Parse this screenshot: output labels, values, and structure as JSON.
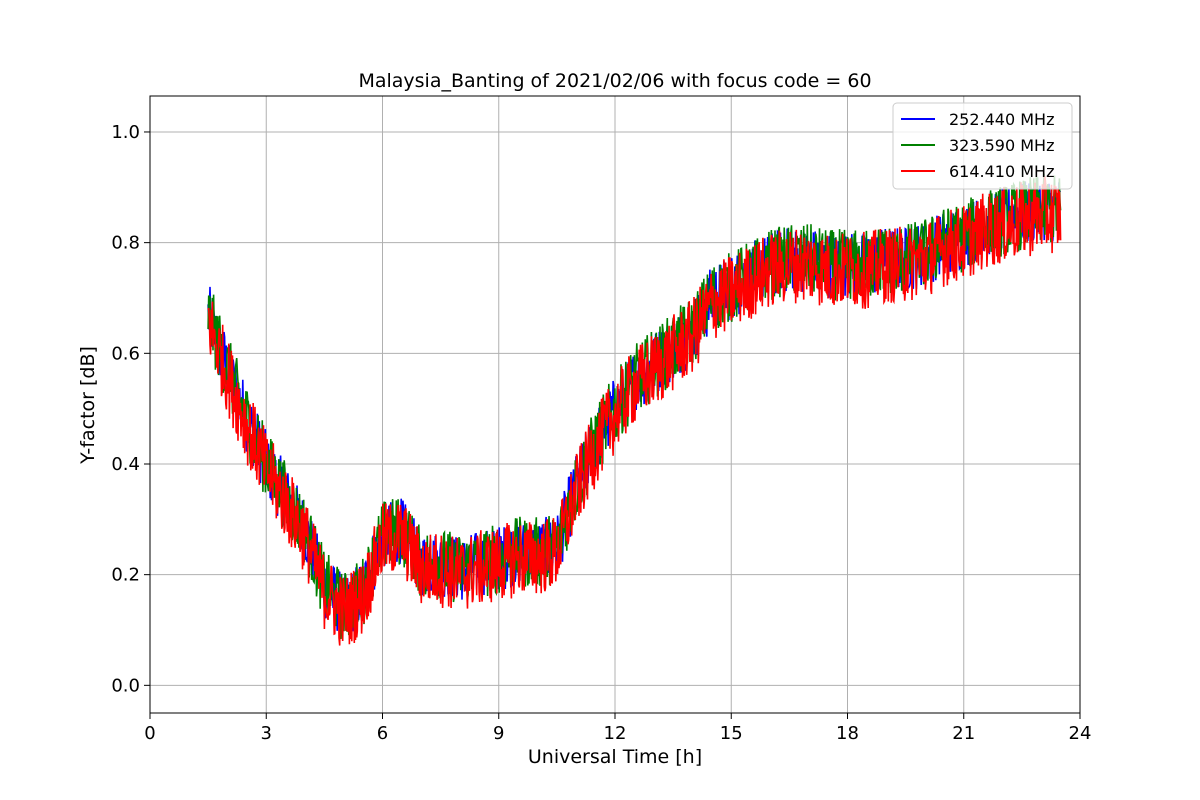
{
  "chart_data": {
    "type": "line",
    "title": "Malaysia_Banting of 2021/02/06 with focus code = 60",
    "xlabel": "Universal Time [h]",
    "ylabel": "Y-factor [dB]",
    "xlim": [
      0,
      24
    ],
    "ylim": [
      -0.05,
      1.065
    ],
    "x_ticks": [
      0,
      3,
      6,
      9,
      12,
      15,
      18,
      21,
      24
    ],
    "x_tick_labels": [
      "0",
      "3",
      "6",
      "9",
      "12",
      "15",
      "18",
      "21",
      "24"
    ],
    "y_ticks": [
      0.0,
      0.2,
      0.4,
      0.6,
      0.8,
      1.0
    ],
    "y_tick_labels": [
      "0.0",
      "0.2",
      "0.4",
      "0.6",
      "0.8",
      "1.0"
    ],
    "grid": true,
    "legend_position": "top-right",
    "series": [
      {
        "name": "252.440 MHz",
        "color": "#0000ff",
        "x": [
          1.5,
          2.0,
          2.5,
          3.0,
          3.5,
          4.0,
          4.5,
          5.0,
          5.5,
          6.0,
          6.5,
          7.0,
          7.5,
          8.0,
          8.5,
          9.0,
          9.5,
          10.0,
          10.5,
          11.0,
          11.5,
          12.0,
          12.5,
          13.0,
          13.5,
          14.0,
          14.5,
          15.0,
          15.5,
          16.0,
          16.5,
          17.0,
          17.5,
          18.0,
          18.5,
          19.0,
          19.5,
          20.0,
          20.5,
          21.0,
          21.5,
          22.0,
          22.5,
          23.0,
          23.5
        ],
        "y": [
          0.67,
          0.57,
          0.48,
          0.4,
          0.34,
          0.28,
          0.18,
          0.14,
          0.17,
          0.27,
          0.28,
          0.22,
          0.22,
          0.21,
          0.22,
          0.23,
          0.24,
          0.24,
          0.25,
          0.36,
          0.44,
          0.5,
          0.55,
          0.58,
          0.61,
          0.64,
          0.7,
          0.72,
          0.74,
          0.76,
          0.77,
          0.77,
          0.76,
          0.76,
          0.76,
          0.77,
          0.77,
          0.78,
          0.8,
          0.81,
          0.83,
          0.84,
          0.85,
          0.86,
          0.86
        ],
        "amplitude": 0.06
      },
      {
        "name": "323.590 MHz",
        "color": "#008000",
        "x": [
          1.5,
          2.0,
          2.5,
          3.0,
          3.5,
          4.0,
          4.5,
          5.0,
          5.5,
          6.0,
          6.5,
          7.0,
          7.5,
          8.0,
          8.5,
          9.0,
          9.5,
          10.0,
          10.5,
          11.0,
          11.5,
          12.0,
          12.5,
          13.0,
          13.5,
          14.0,
          14.5,
          15.0,
          15.5,
          16.0,
          16.5,
          17.0,
          17.5,
          18.0,
          18.5,
          19.0,
          19.5,
          20.0,
          20.5,
          21.0,
          21.5,
          22.0,
          22.5,
          23.0,
          23.5
        ],
        "y": [
          0.67,
          0.57,
          0.48,
          0.4,
          0.34,
          0.28,
          0.18,
          0.14,
          0.17,
          0.27,
          0.28,
          0.22,
          0.22,
          0.21,
          0.22,
          0.23,
          0.24,
          0.24,
          0.25,
          0.36,
          0.44,
          0.5,
          0.55,
          0.58,
          0.61,
          0.64,
          0.7,
          0.72,
          0.74,
          0.76,
          0.77,
          0.77,
          0.76,
          0.76,
          0.76,
          0.77,
          0.77,
          0.78,
          0.8,
          0.81,
          0.83,
          0.84,
          0.85,
          0.86,
          0.86
        ],
        "amplitude": 0.065
      },
      {
        "name": "614.410 MHz",
        "color": "#ff0000",
        "x": [
          1.5,
          2.0,
          2.5,
          3.0,
          3.5,
          4.0,
          4.5,
          5.0,
          5.5,
          6.0,
          6.5,
          7.0,
          7.5,
          8.0,
          8.5,
          9.0,
          9.5,
          10.0,
          10.5,
          11.0,
          11.5,
          12.0,
          12.5,
          13.0,
          13.5,
          14.0,
          14.5,
          15.0,
          15.5,
          16.0,
          16.5,
          17.0,
          17.5,
          18.0,
          18.5,
          19.0,
          19.5,
          20.0,
          20.5,
          21.0,
          21.5,
          22.0,
          22.5,
          23.0,
          23.5
        ],
        "y": [
          0.66,
          0.56,
          0.47,
          0.39,
          0.33,
          0.27,
          0.17,
          0.13,
          0.16,
          0.26,
          0.27,
          0.21,
          0.21,
          0.2,
          0.21,
          0.22,
          0.23,
          0.23,
          0.24,
          0.35,
          0.43,
          0.49,
          0.54,
          0.57,
          0.6,
          0.63,
          0.69,
          0.71,
          0.73,
          0.75,
          0.76,
          0.76,
          0.75,
          0.75,
          0.75,
          0.76,
          0.76,
          0.77,
          0.79,
          0.8,
          0.82,
          0.83,
          0.84,
          0.85,
          0.85
        ],
        "amplitude": 0.07
      }
    ]
  }
}
